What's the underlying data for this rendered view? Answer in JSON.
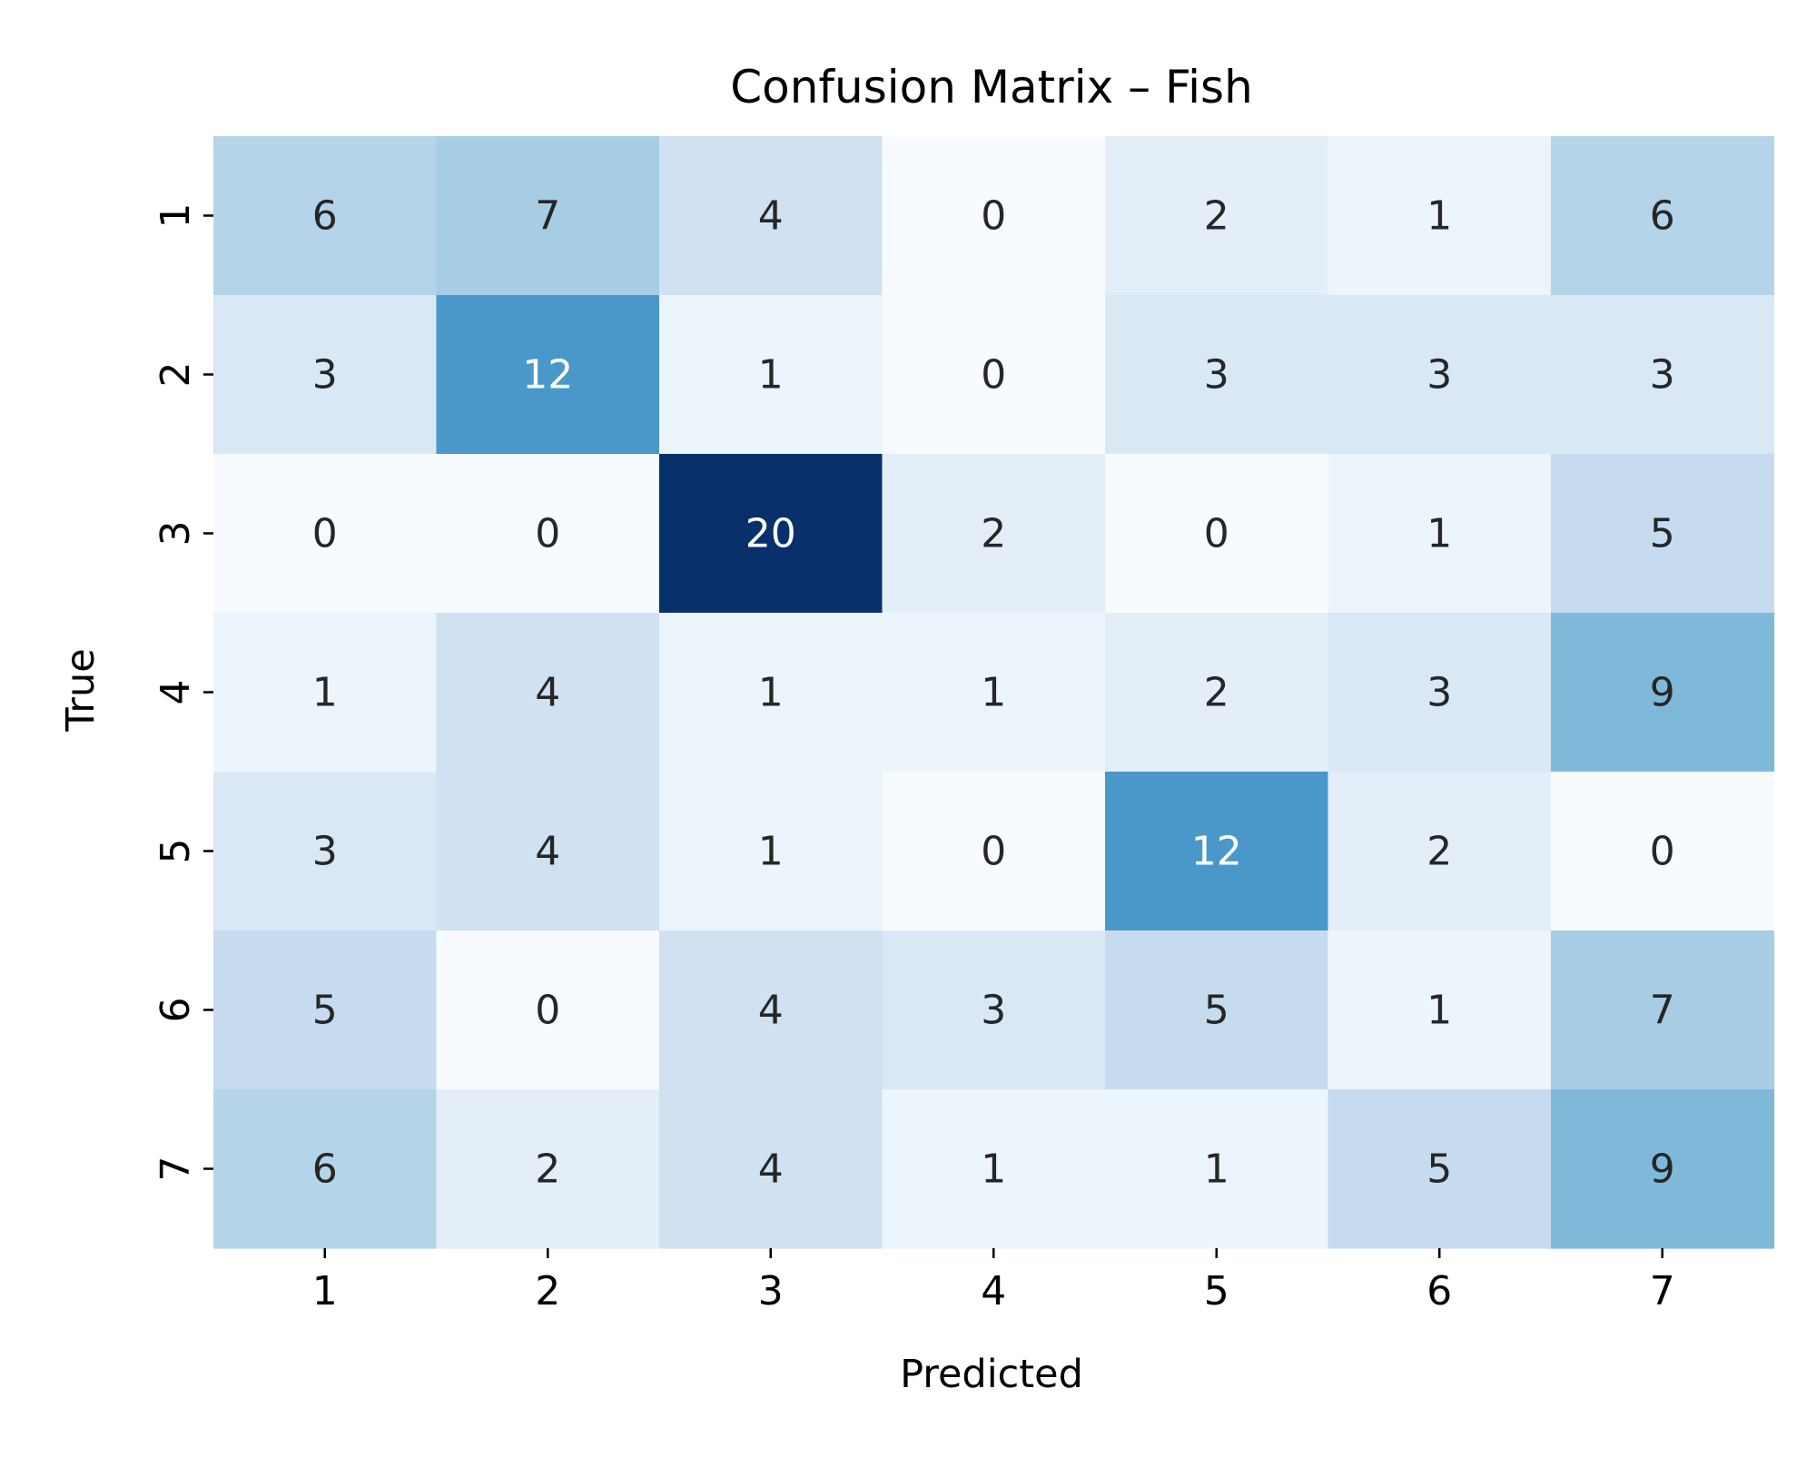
{
  "chart_data": {
    "type": "heatmap",
    "title": "Confusion Matrix – Fish",
    "xlabel": "Predicted",
    "ylabel": "True",
    "x_categories": [
      "1",
      "2",
      "3",
      "4",
      "5",
      "6",
      "7"
    ],
    "y_categories": [
      "1",
      "2",
      "3",
      "4",
      "5",
      "6",
      "7"
    ],
    "values": [
      [
        6,
        7,
        4,
        0,
        2,
        1,
        6
      ],
      [
        3,
        12,
        1,
        0,
        3,
        3,
        3
      ],
      [
        0,
        0,
        20,
        2,
        0,
        1,
        5
      ],
      [
        1,
        4,
        1,
        1,
        2,
        3,
        9
      ],
      [
        3,
        4,
        1,
        0,
        12,
        2,
        0
      ],
      [
        5,
        0,
        4,
        3,
        5,
        1,
        7
      ],
      [
        6,
        2,
        4,
        1,
        1,
        5,
        9
      ]
    ],
    "value_range": [
      0,
      20
    ],
    "colormap": "Blues",
    "colorbar": false,
    "grid": false
  }
}
